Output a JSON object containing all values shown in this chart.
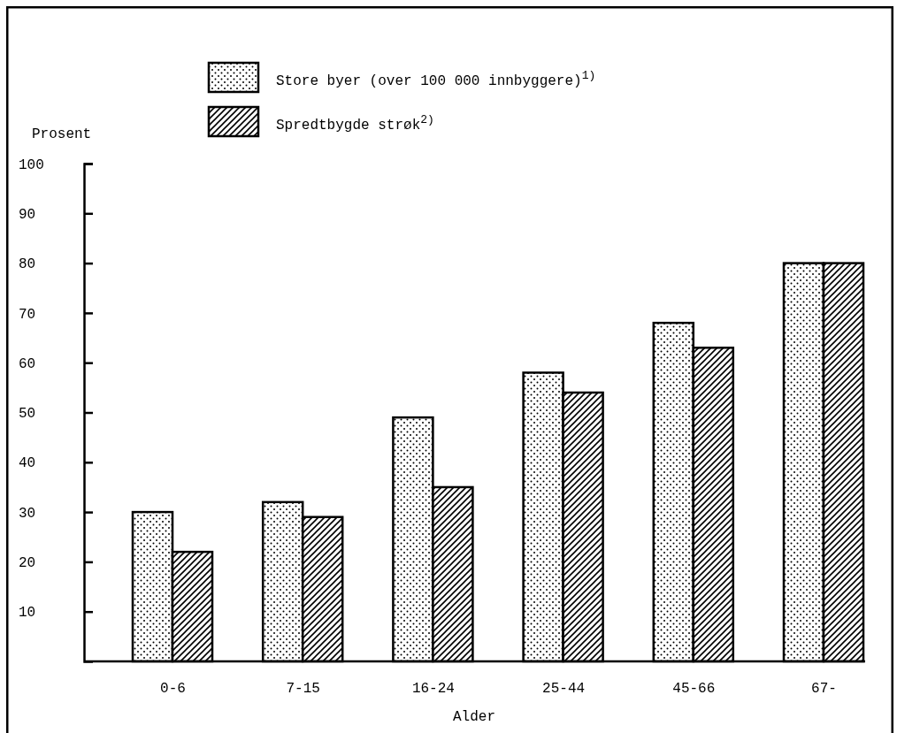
{
  "chart_data": {
    "type": "bar",
    "xlabel": "Alder",
    "ylabel": "Prosent",
    "categories": [
      "0-6",
      "7-15",
      "16-24",
      "25-44",
      "45-66",
      "67-"
    ],
    "series": [
      {
        "name": "Store byer (over 100 000 innbyggere)$^{1)}$",
        "color": "#000000",
        "values": [
          30,
          32,
          49,
          58,
          68,
          80
        ]
      },
      {
        "name": "Spredtbygde strøk$^{2)}$",
        "color": "#000000",
        "values": [
          22,
          29,
          35,
          54,
          63,
          80
        ]
      }
    ],
    "ylim": [
      0,
      100
    ],
    "yticks": [
      10,
      20,
      30,
      40,
      50,
      60,
      70,
      80,
      90,
      100
    ],
    "grid": false,
    "legend": "top"
  }
}
